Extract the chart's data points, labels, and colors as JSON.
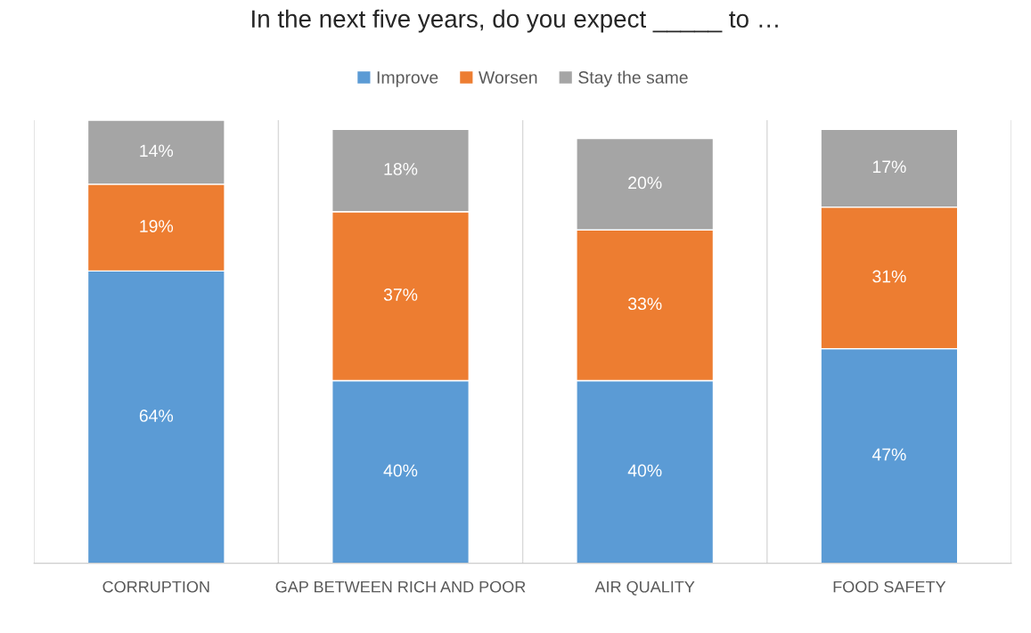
{
  "chart_data": {
    "type": "bar",
    "title": "In the next five years, do you expect _____ to …",
    "categories": [
      "CORRUPTION",
      "GAP BETWEEN RICH AND POOR",
      "AIR QUALITY",
      "FOOD SAFETY"
    ],
    "series": [
      {
        "name": "Improve",
        "color": "#5b9bd5",
        "values": [
          64,
          40,
          40,
          47
        ],
        "value_labels": [
          "64%",
          "40%",
          "40%",
          "47%"
        ]
      },
      {
        "name": "Worsen",
        "color": "#ed7d31",
        "values": [
          19,
          37,
          33,
          31
        ],
        "value_labels": [
          "19%",
          "37%",
          "33%",
          "31%"
        ]
      },
      {
        "name": "Stay the same",
        "color": "#a5a5a5",
        "values": [
          14,
          18,
          20,
          17
        ],
        "value_labels": [
          "14%",
          "18%",
          "20%",
          "17%"
        ]
      }
    ],
    "stacked": true,
    "tick_labels": "x",
    "grid": "x",
    "legend": "top"
  }
}
